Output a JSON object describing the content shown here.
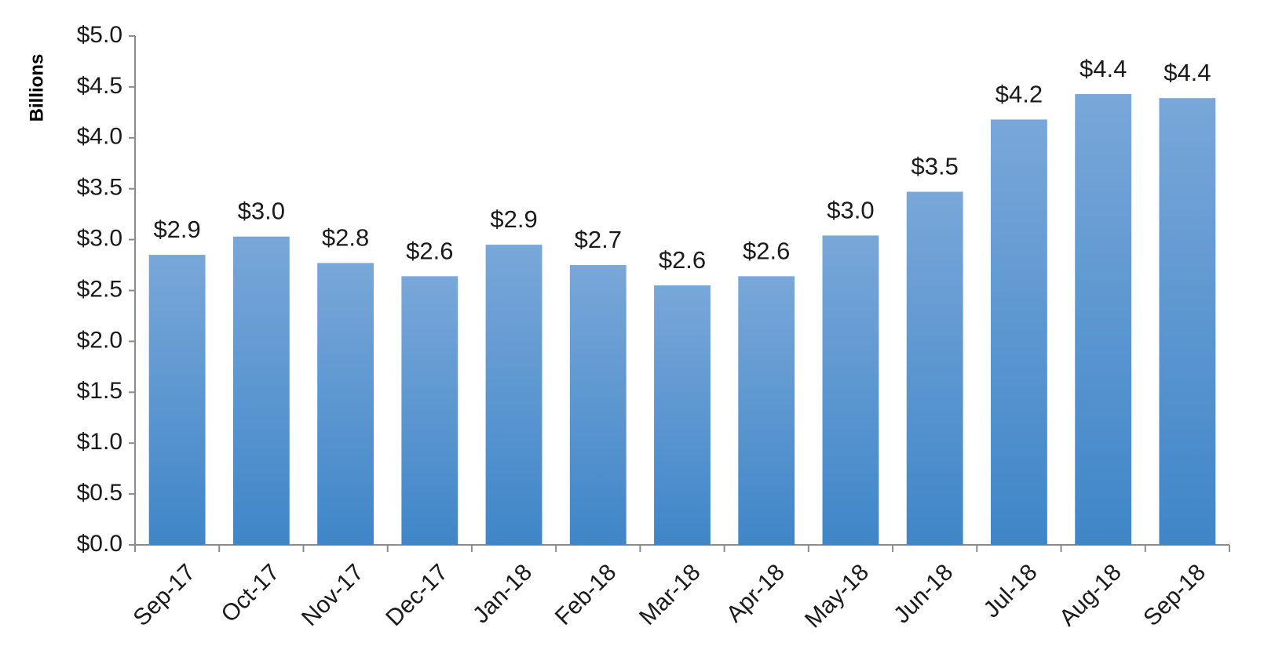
{
  "chart_data": {
    "type": "bar",
    "categories": [
      "Sep-17",
      "Oct-17",
      "Nov-17",
      "Dec-17",
      "Jan-18",
      "Feb-18",
      "Mar-18",
      "Apr-18",
      "May-18",
      "Jun-18",
      "Jul-18",
      "Aug-18",
      "Sep-18"
    ],
    "values": [
      2.85,
      3.03,
      2.77,
      2.64,
      2.95,
      2.75,
      2.55,
      2.64,
      3.04,
      3.47,
      4.18,
      4.43,
      4.39
    ],
    "data_labels": [
      "$2.9",
      "$3.0",
      "$2.8",
      "$2.6",
      "$2.9",
      "$2.7",
      "$2.6",
      "$2.6",
      "$3.0",
      "$3.5",
      "$4.2",
      "$4.4",
      "$4.4"
    ],
    "y_tick_labels": [
      "$0.0",
      "$0.5",
      "$1.0",
      "$1.5",
      "$2.0",
      "$2.5",
      "$3.0",
      "$3.5",
      "$4.0",
      "$4.5",
      "$5.0"
    ],
    "ylabel": "Billions",
    "xlabel": "",
    "title": "",
    "ylim": [
      0,
      5
    ],
    "grid": false,
    "legend": "none",
    "bar_color_top": "#79a7d9",
    "bar_color_bottom": "#3f86c8"
  }
}
